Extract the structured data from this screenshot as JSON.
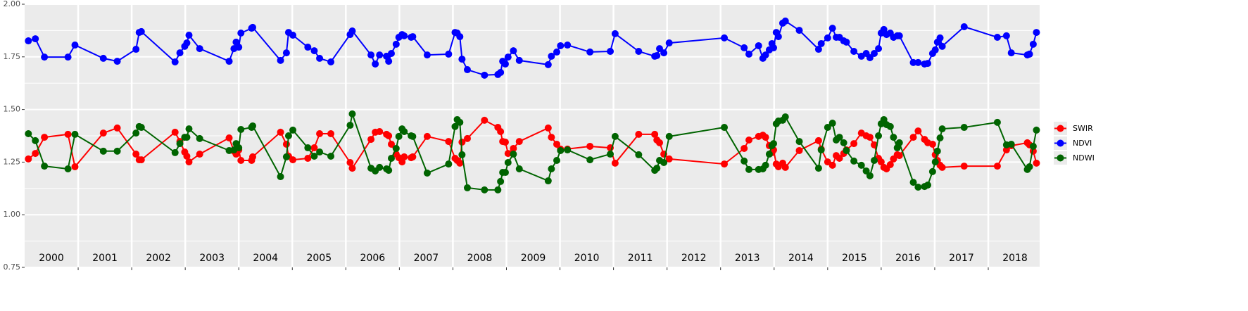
{
  "chart_data": {
    "type": "line",
    "x": [
      2000.07,
      2000.2,
      2000.37,
      2000.81,
      2000.94,
      2001.47,
      2001.73,
      2002.08,
      2002.14,
      2002.18,
      2002.81,
      2002.9,
      2002.99,
      2003.03,
      2003.07,
      2003.27,
      2003.82,
      2003.91,
      2003.95,
      2004.0,
      2004.04,
      2004.24,
      2004.26,
      2004.78,
      2004.89,
      2004.93,
      2005.01,
      2005.29,
      2005.41,
      2005.51,
      2005.72,
      2006.08,
      2006.12,
      2006.47,
      2006.55,
      2006.63,
      2006.76,
      2006.8,
      2006.85,
      2006.94,
      2006.99,
      2007.05,
      2007.09,
      2007.22,
      2007.25,
      2007.52,
      2007.92,
      2008.04,
      2008.08,
      2008.13,
      2008.17,
      2008.27,
      2008.59,
      2008.84,
      2008.89,
      2008.93,
      2008.98,
      2009.03,
      2009.13,
      2009.24,
      2009.78,
      2009.84,
      2009.94,
      2010.01,
      2010.14,
      2010.56,
      2010.94,
      2011.03,
      2011.47,
      2011.77,
      2011.81,
      2011.86,
      2011.94,
      2012.04,
      2013.07,
      2013.44,
      2013.53,
      2013.71,
      2013.79,
      2013.84,
      2013.91,
      2013.96,
      2013.99,
      2014.04,
      2014.08,
      2014.16,
      2014.21,
      2014.47,
      2014.83,
      2014.88,
      2015.0,
      2015.09,
      2015.16,
      2015.22,
      2015.3,
      2015.35,
      2015.49,
      2015.63,
      2015.72,
      2015.79,
      2015.87,
      2015.95,
      2016.0,
      2016.05,
      2016.1,
      2016.17,
      2016.23,
      2016.3,
      2016.34,
      2016.6,
      2016.69,
      2016.81,
      2016.87,
      2016.96,
      2017.01,
      2017.05,
      2017.1,
      2017.14,
      2017.55,
      2018.17,
      2018.34,
      2018.43,
      2018.73,
      2018.77,
      2018.84,
      2018.9
    ],
    "series": [
      {
        "name": "SWIR",
        "color": "#ff0000",
        "values": [
          1.265,
          1.291,
          1.368,
          1.382,
          1.228,
          1.388,
          1.412,
          1.288,
          1.261,
          1.261,
          1.392,
          1.348,
          1.298,
          1.278,
          1.251,
          1.288,
          1.365,
          1.302,
          1.288,
          1.308,
          1.258,
          1.258,
          1.275,
          1.392,
          1.335,
          1.278,
          1.261,
          1.268,
          1.318,
          1.385,
          1.385,
          1.248,
          1.221,
          1.358,
          1.392,
          1.395,
          1.382,
          1.375,
          1.335,
          1.288,
          1.271,
          1.251,
          1.275,
          1.271,
          1.275,
          1.372,
          1.348,
          1.268,
          1.258,
          1.245,
          1.345,
          1.362,
          1.449,
          1.415,
          1.395,
          1.348,
          1.345,
          1.291,
          1.315,
          1.348,
          1.412,
          1.368,
          1.335,
          1.312,
          1.312,
          1.325,
          1.318,
          1.245,
          1.382,
          1.382,
          1.355,
          1.342,
          1.288,
          1.265,
          1.241,
          1.315,
          1.355,
          1.372,
          1.378,
          1.368,
          1.328,
          1.295,
          1.308,
          1.241,
          1.228,
          1.245,
          1.225,
          1.305,
          1.352,
          1.312,
          1.251,
          1.235,
          1.281,
          1.268,
          1.291,
          1.308,
          1.338,
          1.388,
          1.375,
          1.368,
          1.332,
          1.268,
          1.251,
          1.225,
          1.218,
          1.238,
          1.265,
          1.285,
          1.281,
          1.368,
          1.398,
          1.358,
          1.342,
          1.335,
          1.285,
          1.258,
          1.235,
          1.225,
          1.231,
          1.231,
          1.308,
          1.328,
          1.342,
          1.332,
          1.302,
          1.245
        ]
      },
      {
        "name": "NDVI",
        "color": "#0000ff",
        "values": [
          1.826,
          1.836,
          1.749,
          1.749,
          1.806,
          1.743,
          1.729,
          1.786,
          1.866,
          1.87,
          1.726,
          1.769,
          1.8,
          1.816,
          1.853,
          1.789,
          1.729,
          1.789,
          1.82,
          1.796,
          1.863,
          1.886,
          1.89,
          1.733,
          1.769,
          1.866,
          1.853,
          1.796,
          1.779,
          1.743,
          1.726,
          1.856,
          1.873,
          1.759,
          1.716,
          1.759,
          1.753,
          1.729,
          1.766,
          1.81,
          1.843,
          1.856,
          1.85,
          1.843,
          1.846,
          1.759,
          1.763,
          1.866,
          1.863,
          1.846,
          1.739,
          1.689,
          1.663,
          1.666,
          1.676,
          1.729,
          1.716,
          1.749,
          1.779,
          1.733,
          1.713,
          1.753,
          1.773,
          1.803,
          1.806,
          1.773,
          1.776,
          1.86,
          1.776,
          1.753,
          1.756,
          1.789,
          1.769,
          1.816,
          1.84,
          1.793,
          1.763,
          1.803,
          1.743,
          1.759,
          1.783,
          1.813,
          1.793,
          1.866,
          1.846,
          1.91,
          1.92,
          1.876,
          1.786,
          1.813,
          1.84,
          1.886,
          1.843,
          1.843,
          1.826,
          1.82,
          1.776,
          1.753,
          1.766,
          1.746,
          1.766,
          1.789,
          1.863,
          1.88,
          1.856,
          1.863,
          1.843,
          1.85,
          1.85,
          1.723,
          1.723,
          1.716,
          1.719,
          1.766,
          1.783,
          1.82,
          1.84,
          1.8,
          1.893,
          1.843,
          1.85,
          1.769,
          1.759,
          1.763,
          1.81,
          1.866
        ]
      },
      {
        "name": "NDWI",
        "color": "#006400",
        "values": [
          1.385,
          1.352,
          1.231,
          1.218,
          1.382,
          1.302,
          1.302,
          1.388,
          1.419,
          1.415,
          1.295,
          1.338,
          1.368,
          1.368,
          1.408,
          1.362,
          1.305,
          1.308,
          1.338,
          1.318,
          1.405,
          1.415,
          1.422,
          1.181,
          1.275,
          1.375,
          1.402,
          1.318,
          1.278,
          1.298,
          1.278,
          1.425,
          1.479,
          1.221,
          1.208,
          1.225,
          1.218,
          1.211,
          1.268,
          1.315,
          1.372,
          1.408,
          1.395,
          1.375,
          1.372,
          1.198,
          1.241,
          1.419,
          1.452,
          1.439,
          1.285,
          1.128,
          1.118,
          1.118,
          1.158,
          1.201,
          1.201,
          1.248,
          1.288,
          1.218,
          1.161,
          1.218,
          1.258,
          1.305,
          1.308,
          1.261,
          1.288,
          1.372,
          1.285,
          1.211,
          1.221,
          1.258,
          1.248,
          1.372,
          1.415,
          1.255,
          1.215,
          1.215,
          1.218,
          1.235,
          1.288,
          1.328,
          1.338,
          1.432,
          1.445,
          1.449,
          1.465,
          1.348,
          1.221,
          1.308,
          1.415,
          1.435,
          1.355,
          1.368,
          1.342,
          1.305,
          1.255,
          1.235,
          1.208,
          1.185,
          1.258,
          1.375,
          1.432,
          1.452,
          1.428,
          1.419,
          1.368,
          1.318,
          1.342,
          1.154,
          1.131,
          1.134,
          1.141,
          1.205,
          1.251,
          1.302,
          1.365,
          1.408,
          1.415,
          1.439,
          1.332,
          1.335,
          1.215,
          1.228,
          1.325,
          1.402
        ]
      }
    ],
    "annotations": [
      {
        "text": "2000",
        "x": 2000.5
      },
      {
        "text": "2001",
        "x": 2001.5
      },
      {
        "text": "2002",
        "x": 2002.5
      },
      {
        "text": "2003",
        "x": 2003.5
      },
      {
        "text": "2004",
        "x": 2004.5
      },
      {
        "text": "2005",
        "x": 2005.5
      },
      {
        "text": "2006",
        "x": 2006.5
      },
      {
        "text": "2007",
        "x": 2007.5
      },
      {
        "text": "2008",
        "x": 2008.5
      },
      {
        "text": "2009",
        "x": 2009.5
      },
      {
        "text": "2010",
        "x": 2010.5
      },
      {
        "text": "2011",
        "x": 2011.5
      },
      {
        "text": "2012",
        "x": 2012.5
      },
      {
        "text": "2013",
        "x": 2013.5
      },
      {
        "text": "2014",
        "x": 2014.5
      },
      {
        "text": "2015",
        "x": 2015.5
      },
      {
        "text": "2016",
        "x": 2016.5
      },
      {
        "text": "2017",
        "x": 2017.5
      },
      {
        "text": "2018",
        "x": 2018.5
      }
    ],
    "xlim": [
      2000,
      2018.96
    ],
    "xticks": [
      2001,
      2002,
      2003,
      2004,
      2005,
      2006,
      2007,
      2008,
      2009,
      2010,
      2011,
      2012,
      2013,
      2014,
      2015,
      2016,
      2017,
      2018
    ],
    "ylim": [
      0.75,
      2.0
    ],
    "yticks": [
      {
        "value": 0.75,
        "label": "0.75"
      },
      {
        "value": 1.0,
        "label": "1.00"
      },
      {
        "value": 1.25,
        "label": "1.25"
      },
      {
        "value": 1.5,
        "label": "1.50"
      },
      {
        "value": 1.75,
        "label": "1.75"
      },
      {
        "value": 2.0,
        "label": "2.00"
      }
    ],
    "grid": true,
    "legend": "right"
  }
}
